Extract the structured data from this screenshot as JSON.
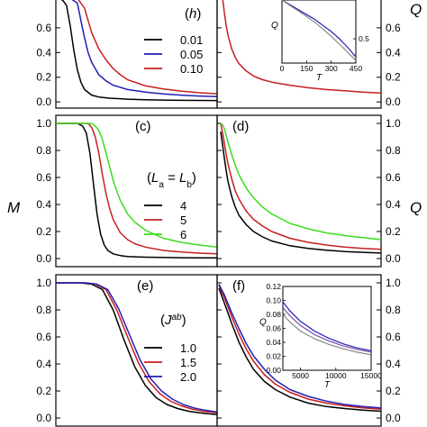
{
  "figure": {
    "left_axis_title": "M",
    "right_axis_title": "Q",
    "top_right_axis_title": "Q"
  },
  "colors": {
    "black": "#000000",
    "blue": "#1f1fb4",
    "red": "#c81e1e",
    "green": "#3ddc1e",
    "purple": "#7a4aa8",
    "inset_gray": "#888888"
  },
  "chart_data": [
    {
      "panel": "a",
      "type": "line",
      "label": "",
      "position": "top-left",
      "xlim": [
        0,
        450
      ],
      "ylim": [
        -0.05,
        0.84
      ],
      "y_ticks": [
        0.0,
        0.2,
        0.4,
        0.6
      ],
      "y_tick_labels": [
        "0.0",
        "0.2",
        "0.4",
        "0.6"
      ],
      "legend_title": "(h)",
      "series": [
        {
          "name": "0.01",
          "color": "#000000",
          "x": [
            10,
            20,
            30,
            40,
            50,
            60,
            70,
            80,
            100,
            120,
            150,
            200,
            250,
            300,
            350,
            400,
            450
          ],
          "y": [
            0.84,
            0.82,
            0.78,
            0.62,
            0.42,
            0.26,
            0.16,
            0.1,
            0.055,
            0.04,
            0.03,
            0.022,
            0.018,
            0.015,
            0.013,
            0.012,
            0.011
          ]
        },
        {
          "name": "0.05",
          "color": "#1f1fb4",
          "x": [
            10,
            40,
            60,
            70,
            80,
            90,
            100,
            120,
            140,
            160,
            200,
            250,
            300,
            350,
            400,
            450
          ],
          "y": [
            0.84,
            0.84,
            0.8,
            0.66,
            0.52,
            0.4,
            0.32,
            0.22,
            0.17,
            0.135,
            0.1,
            0.08,
            0.065,
            0.055,
            0.048,
            0.043
          ]
        },
        {
          "name": "0.10",
          "color": "#c81e1e",
          "x": [
            10,
            60,
            80,
            90,
            100,
            120,
            140,
            160,
            180,
            200,
            250,
            300,
            350,
            400,
            450
          ],
          "y": [
            0.84,
            0.84,
            0.76,
            0.66,
            0.56,
            0.43,
            0.34,
            0.27,
            0.22,
            0.18,
            0.13,
            0.105,
            0.088,
            0.075,
            0.066
          ]
        }
      ]
    },
    {
      "panel": "b",
      "type": "line",
      "label": "",
      "position": "top-right",
      "xlim": [
        0,
        450
      ],
      "ylim": [
        -0.05,
        0.84
      ],
      "y_ticks": [
        0.0,
        0.2,
        0.4,
        0.6
      ],
      "y_tick_labels": [
        "0.0",
        "0.2",
        "0.4",
        "0.6"
      ],
      "series": [
        {
          "name": "",
          "color": "#c81e1e",
          "x": [
            15,
            20,
            25,
            30,
            40,
            50,
            60,
            80,
            100,
            125,
            150,
            200,
            250,
            300,
            350,
            400,
            450
          ],
          "y": [
            0.84,
            0.72,
            0.62,
            0.54,
            0.43,
            0.36,
            0.31,
            0.25,
            0.21,
            0.18,
            0.16,
            0.135,
            0.115,
            0.1,
            0.09,
            0.08,
            0.072
          ]
        }
      ],
      "inset": {
        "xlim": [
          0,
          450
        ],
        "ylim": [
          0.4,
          0.66
        ],
        "x_ticks": [
          0,
          150,
          300,
          450
        ],
        "x_tick_labels": [
          "0",
          "150",
          "300",
          "450"
        ],
        "right_tick": 0.5,
        "right_tick_label": "0.5",
        "xlabel": "T",
        "ylabel": "Q",
        "series": [
          {
            "color": "#1f1fb4",
            "x": [
              0,
              50,
              100,
              150,
              200,
              250,
              300,
              350,
              400,
              450
            ],
            "y": [
              0.66,
              0.64,
              0.62,
              0.6,
              0.58,
              0.555,
              0.53,
              0.5,
              0.465,
              0.425
            ]
          },
          {
            "color": "#888888",
            "x": [
              0,
              50,
              100,
              150,
              200,
              250,
              300,
              350,
              400,
              450
            ],
            "y": [
              0.66,
              0.637,
              0.615,
              0.592,
              0.568,
              0.54,
              0.51,
              0.478,
              0.445,
              0.41
            ]
          }
        ]
      }
    },
    {
      "panel": "c",
      "type": "line",
      "label": "(c)",
      "position": "middle-left",
      "xlim": [
        0,
        450
      ],
      "ylim": [
        -0.06,
        1.06
      ],
      "y_ticks": [
        0.0,
        0.2,
        0.4,
        0.6,
        0.8,
        1.0
      ],
      "y_tick_labels": [
        "0.0",
        "0.2",
        "0.4",
        "0.6",
        "0.8",
        "1.0"
      ],
      "legend_title": "(La = Lb)",
      "series": [
        {
          "name": "4",
          "color": "#000000",
          "x": [
            0,
            60,
            75,
            85,
            95,
            105,
            115,
            125,
            135,
            145,
            160,
            180,
            200,
            250,
            300,
            350,
            400,
            450
          ],
          "y": [
            1.0,
            1.0,
            0.98,
            0.93,
            0.78,
            0.55,
            0.33,
            0.18,
            0.1,
            0.06,
            0.035,
            0.022,
            0.015,
            0.01,
            0.008,
            0.006,
            0.005,
            0.005
          ]
        },
        {
          "name": "5",
          "color": "#c81e1e",
          "x": [
            0,
            90,
            100,
            110,
            120,
            130,
            140,
            150,
            160,
            180,
            200,
            220,
            250,
            300,
            350,
            400,
            450
          ],
          "y": [
            1.0,
            1.0,
            0.97,
            0.9,
            0.78,
            0.62,
            0.48,
            0.37,
            0.29,
            0.19,
            0.14,
            0.11,
            0.085,
            0.06,
            0.048,
            0.04,
            0.035
          ]
        },
        {
          "name": "6",
          "color": "#3ddc1e",
          "x": [
            0,
            100,
            110,
            120,
            130,
            140,
            150,
            160,
            170,
            180,
            200,
            220,
            250,
            300,
            350,
            400,
            450
          ],
          "y": [
            1.0,
            1.0,
            0.98,
            0.95,
            0.88,
            0.78,
            0.68,
            0.58,
            0.5,
            0.43,
            0.33,
            0.27,
            0.21,
            0.15,
            0.12,
            0.1,
            0.085
          ]
        }
      ]
    },
    {
      "panel": "d",
      "type": "line",
      "label": "(d)",
      "position": "middle-right",
      "xlim": [
        0,
        450
      ],
      "ylim": [
        -0.06,
        1.06
      ],
      "y_ticks": [
        0.0,
        0.2,
        0.4,
        0.6,
        0.8,
        1.0
      ],
      "y_tick_labels": [
        "0.0",
        "0.2",
        "0.4",
        "0.6",
        "0.8",
        "1.0"
      ],
      "series": [
        {
          "name": "4",
          "color": "#000000",
          "x": [
            10,
            15,
            20,
            25,
            30,
            40,
            50,
            60,
            80,
            100,
            125,
            150,
            200,
            250,
            300,
            350,
            400,
            450
          ],
          "y": [
            0.94,
            0.84,
            0.74,
            0.65,
            0.57,
            0.46,
            0.38,
            0.32,
            0.25,
            0.2,
            0.16,
            0.13,
            0.095,
            0.075,
            0.062,
            0.052,
            0.046,
            0.041
          ]
        },
        {
          "name": "5",
          "color": "#c81e1e",
          "x": [
            10,
            15,
            20,
            25,
            30,
            40,
            50,
            60,
            80,
            100,
            125,
            150,
            200,
            250,
            300,
            350,
            400,
            450
          ],
          "y": [
            1.0,
            0.93,
            0.85,
            0.77,
            0.7,
            0.59,
            0.5,
            0.44,
            0.35,
            0.29,
            0.24,
            0.2,
            0.15,
            0.12,
            0.1,
            0.085,
            0.075,
            0.068
          ]
        },
        {
          "name": "6",
          "color": "#3ddc1e",
          "x": [
            10,
            15,
            20,
            25,
            30,
            40,
            50,
            60,
            80,
            100,
            125,
            150,
            200,
            250,
            300,
            350,
            400,
            450
          ],
          "y": [
            1.0,
            0.99,
            0.96,
            0.91,
            0.86,
            0.77,
            0.69,
            0.62,
            0.52,
            0.45,
            0.38,
            0.33,
            0.26,
            0.22,
            0.19,
            0.17,
            0.155,
            0.14
          ]
        }
      ]
    },
    {
      "panel": "e",
      "type": "line",
      "label": "(e)",
      "position": "bottom-left",
      "xlim": [
        0,
        450
      ],
      "ylim": [
        -0.06,
        1.06
      ],
      "y_ticks": [
        0.0,
        0.2,
        0.4,
        0.6,
        0.8,
        1.0
      ],
      "y_tick_labels": [
        "0.0",
        "0.2",
        "0.4",
        "0.6",
        "0.8",
        "1.0"
      ],
      "legend_title": "(Jab)",
      "series": [
        {
          "name": "1.0",
          "color": "#000000",
          "x": [
            0,
            70,
            100,
            130,
            160,
            190,
            220,
            250,
            280,
            310,
            340,
            370,
            400,
            430,
            450
          ],
          "y": [
            1.0,
            1.0,
            0.99,
            0.95,
            0.8,
            0.58,
            0.38,
            0.24,
            0.15,
            0.1,
            0.07,
            0.05,
            0.038,
            0.03,
            0.026
          ]
        },
        {
          "name": "1.5",
          "color": "#c81e1e",
          "x": [
            0,
            80,
            110,
            140,
            170,
            200,
            230,
            260,
            290,
            320,
            350,
            380,
            410,
            450
          ],
          "y": [
            1.0,
            1.0,
            0.99,
            0.95,
            0.8,
            0.6,
            0.41,
            0.27,
            0.18,
            0.125,
            0.09,
            0.066,
            0.05,
            0.038
          ]
        },
        {
          "name": "2.0",
          "color": "#1f1fb4",
          "x": [
            0,
            85,
            115,
            145,
            175,
            205,
            235,
            265,
            295,
            325,
            355,
            385,
            415,
            450
          ],
          "y": [
            1.0,
            1.0,
            0.99,
            0.95,
            0.81,
            0.62,
            0.43,
            0.29,
            0.2,
            0.14,
            0.1,
            0.075,
            0.058,
            0.044
          ]
        }
      ]
    },
    {
      "panel": "f",
      "type": "line",
      "label": "(f)",
      "position": "bottom-right",
      "xlim": [
        0,
        450
      ],
      "ylim": [
        -0.06,
        1.06
      ],
      "y_ticks": [
        0.0,
        0.2,
        0.4,
        0.6,
        0.8,
        1.0
      ],
      "y_tick_labels": [
        "0.0",
        "0.2",
        "0.4",
        "0.6",
        "0.8",
        "1.0"
      ],
      "series": [
        {
          "name": "1.0",
          "color": "#000000",
          "x": [
            5,
            20,
            40,
            60,
            80,
            100,
            130,
            160,
            200,
            250,
            300,
            350,
            400,
            450
          ],
          "y": [
            0.96,
            0.85,
            0.7,
            0.56,
            0.45,
            0.36,
            0.27,
            0.21,
            0.155,
            0.11,
            0.085,
            0.07,
            0.058,
            0.05
          ]
        },
        {
          "name": "1.5",
          "color": "#c81e1e",
          "x": [
            5,
            20,
            40,
            60,
            80,
            100,
            130,
            160,
            200,
            250,
            300,
            350,
            400,
            450
          ],
          "y": [
            0.98,
            0.89,
            0.75,
            0.62,
            0.51,
            0.42,
            0.32,
            0.25,
            0.19,
            0.14,
            0.11,
            0.09,
            0.075,
            0.065
          ]
        },
        {
          "name": "2.0",
          "color": "#1f1fb4",
          "x": [
            5,
            20,
            40,
            60,
            80,
            100,
            130,
            160,
            200,
            250,
            300,
            350,
            400,
            450
          ],
          "y": [
            0.99,
            0.91,
            0.78,
            0.66,
            0.55,
            0.46,
            0.36,
            0.28,
            0.21,
            0.16,
            0.125,
            0.1,
            0.085,
            0.074
          ]
        }
      ],
      "inset": {
        "xlim": [
          2500,
          15000
        ],
        "ylim": [
          0.0,
          0.12
        ],
        "x_ticks": [
          5000,
          10000,
          15000
        ],
        "x_tick_labels": [
          "5000",
          "10000",
          "15000"
        ],
        "y_ticks": [
          0.0,
          0.02,
          0.04,
          0.06,
          0.08,
          0.1,
          0.12
        ],
        "y_tick_labels": [
          "0.00",
          "0.02",
          "0.04",
          "0.06",
          "0.08",
          "0.10",
          "0.12"
        ],
        "xlabel": "T",
        "ylabel": "Q",
        "series": [
          {
            "color": "#1f1fb4",
            "x": [
              2500,
              3500,
              5000,
              7000,
              9000,
              11000,
              13000,
              15000
            ],
            "y": [
              0.098,
              0.085,
              0.07,
              0.056,
              0.046,
              0.038,
              0.032,
              0.028
            ]
          },
          {
            "color": "#7a4aa8",
            "x": [
              2500,
              3500,
              5000,
              7000,
              9000,
              11000,
              13000,
              15000
            ],
            "y": [
              0.09,
              0.078,
              0.064,
              0.051,
              0.042,
              0.035,
              0.03,
              0.026
            ]
          },
          {
            "color": "#888888",
            "x": [
              2500,
              3500,
              5000,
              7000,
              9000,
              11000,
              13000,
              15000
            ],
            "y": [
              0.08,
              0.069,
              0.056,
              0.045,
              0.037,
              0.031,
              0.026,
              0.022
            ]
          }
        ]
      }
    }
  ]
}
